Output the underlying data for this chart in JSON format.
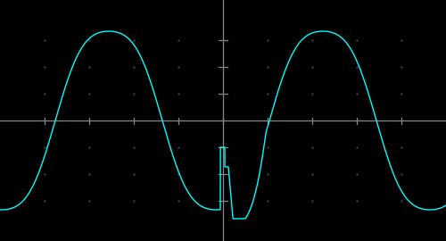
{
  "background_color": "#000000",
  "line_color": "#00ffff",
  "axis_color": "#888888",
  "dot_color": "#333355",
  "fig_width": 5.0,
  "fig_height": 2.7,
  "dpi": 100,
  "xlim": [
    0,
    500
  ],
  "ylim": [
    -135,
    135
  ],
  "x_center": 250,
  "y_center": 0,
  "grid_dots_x": [
    50,
    100,
    150,
    200,
    300,
    350,
    400,
    450
  ],
  "grid_dots_y": [
    -90,
    -60,
    -30,
    30,
    60,
    90
  ],
  "tick_x": [
    50,
    100,
    150,
    200,
    250,
    300,
    350,
    400,
    450
  ],
  "tick_y": [
    -90,
    -60,
    -30,
    30,
    60,
    90
  ],
  "amplitude": 108,
  "period": 240,
  "phase_start": 28,
  "clip_top": 108,
  "trough_depth": -120,
  "glitch_x1": 247,
  "glitch_x2": 252,
  "glitch_x3": 256,
  "glitch_x4": 261,
  "glitch_x5": 275,
  "glitch_x6": 298,
  "glitch_v1": -30,
  "glitch_v2": -52,
  "glitch_vdeep": -110
}
